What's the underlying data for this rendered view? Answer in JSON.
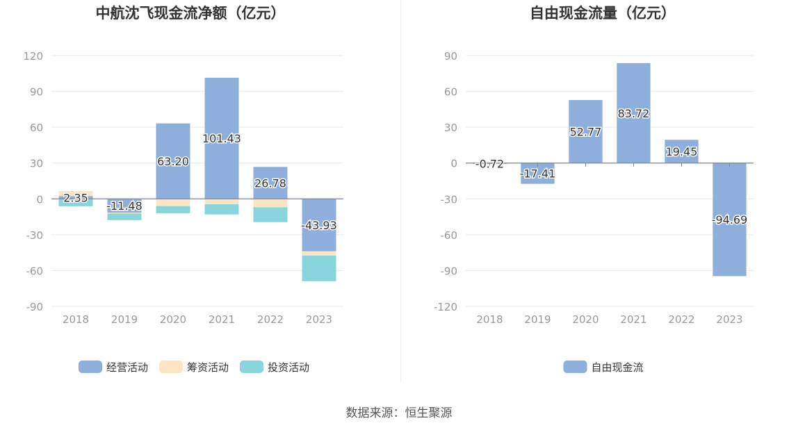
{
  "source_label": "数据来源：恒生聚源",
  "chart_data": [
    {
      "type": "bar",
      "stacked": true,
      "title": "中航沈飞现金流净额（亿元）",
      "categories": [
        "2018",
        "2019",
        "2020",
        "2021",
        "2022",
        "2023"
      ],
      "ylim": [
        -90,
        120
      ],
      "yticks": [
        120,
        90,
        60,
        30,
        0,
        -30,
        -60,
        -90
      ],
      "grid": true,
      "legend_position": "bottom",
      "series": [
        {
          "name": "经营活动",
          "color": "#8eaedc",
          "values": [
            2.35,
            -11.48,
            63.2,
            101.43,
            26.78,
            -43.93
          ],
          "labels": [
            "2.35",
            "-11.48",
            "63.20",
            "101.43",
            "26.78",
            "-43.93"
          ]
        },
        {
          "name": "筹资活动",
          "color": "#fde5c4",
          "values": [
            4.2,
            -0.8,
            -6.0,
            -4.5,
            -7.0,
            -3.5
          ]
        },
        {
          "name": "投资活动",
          "color": "#88d6dc",
          "values": [
            -6.2,
            -5.5,
            -6.0,
            -8.5,
            -12.5,
            -21.5
          ]
        }
      ]
    },
    {
      "type": "bar",
      "title": "自由现金流量（亿元）",
      "categories": [
        "2018",
        "2019",
        "2020",
        "2021",
        "2022",
        "2023"
      ],
      "ylim": [
        -120,
        90
      ],
      "yticks": [
        90,
        60,
        30,
        0,
        -30,
        -60,
        -90,
        -120
      ],
      "grid": true,
      "legend_position": "bottom",
      "series": [
        {
          "name": "自由现金流",
          "color": "#8eaedc",
          "values": [
            -0.72,
            -17.41,
            52.77,
            83.72,
            19.45,
            -94.69
          ],
          "labels": [
            "-0.72",
            "-17.41",
            "52.77",
            "83.72",
            "19.45",
            "-94.69"
          ]
        }
      ]
    }
  ]
}
